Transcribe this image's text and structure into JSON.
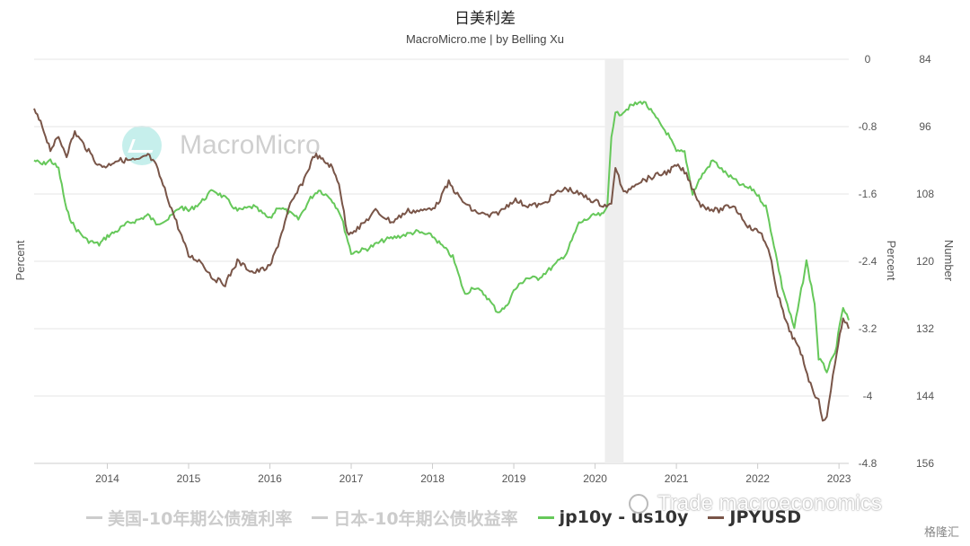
{
  "chart_data": {
    "type": "line",
    "title": "日美利差",
    "subtitle": "MacroMicro.me | by Belling Xu",
    "x_tick_labels": [
      "2014",
      "2015",
      "2016",
      "2017",
      "2018",
      "2019",
      "2020",
      "2021",
      "2022",
      "2023"
    ],
    "left_axis": {
      "label": "Percent",
      "ticks": []
    },
    "right_axis_1": {
      "label": "Percent",
      "range": [
        -4.8,
        0
      ],
      "ticks": [
        "0",
        "-0.8",
        "-1.6",
        "-2.4",
        "-3.2",
        "-4",
        "-4.8"
      ]
    },
    "right_axis_2": {
      "label": "Number",
      "range": [
        84,
        156
      ],
      "inverted": true,
      "ticks": [
        "84",
        "96",
        "108",
        "120",
        "132",
        "144",
        "156"
      ]
    },
    "x_range": [
      2013.1,
      2023.12
    ],
    "shaded_region": {
      "from": 2020.12,
      "to": 2020.35
    },
    "grid": true,
    "legend_placement": "bottom",
    "series": [
      {
        "name": "jp10y - us10y",
        "color": "#66c85a",
        "axis": "right_axis_1",
        "x": [
          2013.1,
          2013.2,
          2013.3,
          2013.4,
          2013.5,
          2013.6,
          2013.75,
          2013.9,
          2014.0,
          2014.1,
          2014.25,
          2014.4,
          2014.5,
          2014.6,
          2014.75,
          2014.9,
          2015.0,
          2015.15,
          2015.3,
          2015.45,
          2015.6,
          2015.8,
          2016.0,
          2016.1,
          2016.2,
          2016.35,
          2016.5,
          2016.6,
          2016.75,
          2016.85,
          2016.9,
          2017.0,
          2017.2,
          2017.4,
          2017.6,
          2017.8,
          2018.0,
          2018.1,
          2018.25,
          2018.4,
          2018.5,
          2018.65,
          2018.8,
          2018.9,
          2019.0,
          2019.15,
          2019.3,
          2019.5,
          2019.65,
          2019.8,
          2020.0,
          2020.1,
          2020.15,
          2020.2,
          2020.25,
          2020.3,
          2020.45,
          2020.6,
          2020.75,
          2020.9,
          2021.0,
          2021.1,
          2021.2,
          2021.3,
          2021.45,
          2021.6,
          2021.8,
          2021.95,
          2022.1,
          2022.2,
          2022.3,
          2022.45,
          2022.6,
          2022.7,
          2022.75,
          2022.85,
          2022.95,
          2023.05,
          2023.12
        ],
        "y": [
          -1.2,
          -1.25,
          -1.2,
          -1.3,
          -1.8,
          -2.0,
          -2.15,
          -2.2,
          -2.1,
          -2.05,
          -1.95,
          -1.9,
          -1.85,
          -1.95,
          -1.9,
          -1.75,
          -1.8,
          -1.7,
          -1.55,
          -1.65,
          -1.8,
          -1.75,
          -1.9,
          -1.75,
          -1.8,
          -1.9,
          -1.65,
          -1.55,
          -1.65,
          -1.8,
          -1.95,
          -2.3,
          -2.25,
          -2.15,
          -2.1,
          -2.05,
          -2.1,
          -2.2,
          -2.35,
          -2.8,
          -2.7,
          -2.8,
          -3.0,
          -2.95,
          -2.75,
          -2.6,
          -2.6,
          -2.45,
          -2.3,
          -1.95,
          -1.85,
          -1.85,
          -1.75,
          -0.9,
          -0.65,
          -0.65,
          -0.55,
          -0.5,
          -0.7,
          -0.9,
          -1.1,
          -1.1,
          -1.6,
          -1.4,
          -1.2,
          -1.35,
          -1.5,
          -1.55,
          -1.75,
          -2.2,
          -2.7,
          -3.2,
          -2.4,
          -2.9,
          -3.55,
          -3.7,
          -3.5,
          -2.95,
          -3.1
        ]
      },
      {
        "name": "JPYUSD",
        "color": "#795548",
        "axis": "right_axis_2",
        "x": [
          2013.1,
          2013.2,
          2013.3,
          2013.4,
          2013.5,
          2013.6,
          2013.75,
          2013.9,
          2014.0,
          2014.1,
          2014.25,
          2014.4,
          2014.5,
          2014.6,
          2014.75,
          2014.85,
          2015.0,
          2015.15,
          2015.3,
          2015.45,
          2015.6,
          2015.8,
          2016.0,
          2016.1,
          2016.25,
          2016.4,
          2016.55,
          2016.65,
          2016.75,
          2016.85,
          2016.95,
          2017.1,
          2017.3,
          2017.5,
          2017.7,
          2017.9,
          2018.05,
          2018.2,
          2018.35,
          2018.5,
          2018.7,
          2018.85,
          2019.0,
          2019.15,
          2019.35,
          2019.5,
          2019.65,
          2019.8,
          2019.95,
          2020.1,
          2020.2,
          2020.25,
          2020.35,
          2020.5,
          2020.7,
          2020.9,
          2021.0,
          2021.1,
          2021.3,
          2021.5,
          2021.7,
          2021.9,
          2022.05,
          2022.15,
          2022.25,
          2022.35,
          2022.45,
          2022.55,
          2022.65,
          2022.75,
          2022.8,
          2022.85,
          2022.9,
          2022.95,
          2023.05,
          2023.12
        ],
        "y": [
          93,
          96,
          100,
          98,
          101,
          97,
          100,
          103,
          103,
          102,
          102,
          102,
          101,
          103,
          109,
          113,
          119,
          120,
          123,
          124,
          120,
          122,
          121,
          117,
          110,
          106,
          101,
          102,
          103,
          106,
          115,
          114,
          111,
          113,
          111,
          111,
          110,
          106,
          109,
          111,
          112,
          111,
          109,
          110,
          110,
          108,
          107,
          108,
          109,
          110,
          110,
          103,
          108,
          106,
          105,
          104,
          103,
          104,
          110,
          111,
          110,
          114,
          115,
          119,
          126,
          131,
          134,
          137,
          142,
          145,
          148,
          148,
          143,
          138,
          130,
          132
        ]
      }
    ]
  },
  "legend": {
    "items": [
      {
        "label": "美国-10年期公债殖利率",
        "color": "#cccccc",
        "active": false
      },
      {
        "label": "日本-10年期公债收益率",
        "color": "#cccccc",
        "active": false
      },
      {
        "label": "jp10y - us10y",
        "color": "#66c85a",
        "active": true
      },
      {
        "label": "JPYUSD",
        "color": "#795548",
        "active": true
      }
    ]
  },
  "watermark": {
    "text": "MacroMicro",
    "logo_color": "#5fd3c9"
  },
  "overlay_mark": {
    "text": "Trade macroeconomics",
    "badge": "格隆汇"
  }
}
